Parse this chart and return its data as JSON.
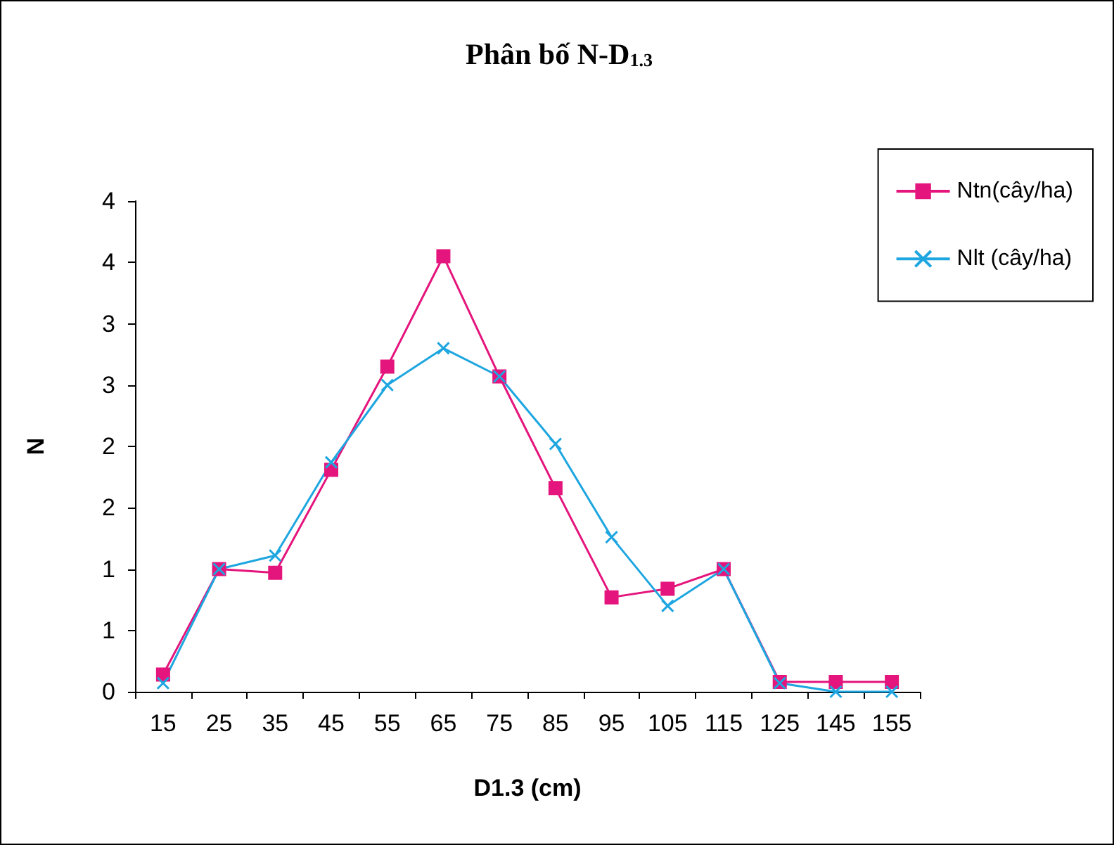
{
  "chart_data": {
    "type": "line",
    "title": "Phân bố N-D$_{1.3}$",
    "xlabel": "D1.3 (cm)",
    "ylabel": "N",
    "categories": [
      "15",
      "25",
      "35",
      "45",
      "55",
      "65",
      "75",
      "85",
      "95",
      "105",
      "115",
      "125",
      "145",
      "155"
    ],
    "series": [
      {
        "name": "Ntn(cây/ha)",
        "color": "#e4157c",
        "marker": "square",
        "values": [
          0.14,
          1.0,
          0.97,
          1.81,
          2.65,
          3.55,
          2.57,
          1.66,
          0.77,
          0.84,
          1.0,
          0.08,
          0.08,
          0.08
        ]
      },
      {
        "name": "Nlt (cây/ha)",
        "color": "#1ea6e0",
        "marker": "cross",
        "values": [
          0.07,
          1.0,
          1.11,
          1.87,
          2.5,
          2.8,
          2.57,
          2.02,
          1.26,
          0.7,
          1.0,
          0.07,
          0,
          0
        ]
      }
    ],
    "ylim": [
      0,
      4
    ],
    "yticks": [
      0,
      {
        "value": 0.5,
        "label": "1"
      },
      1,
      {
        "value": 1.5,
        "label": "2"
      },
      2,
      {
        "value": 2.5,
        "label": "3"
      },
      3,
      {
        "value": 3.5,
        "label": "4"
      },
      4
    ],
    "grid": false,
    "legend": "top right",
    "line_style": "solid"
  }
}
